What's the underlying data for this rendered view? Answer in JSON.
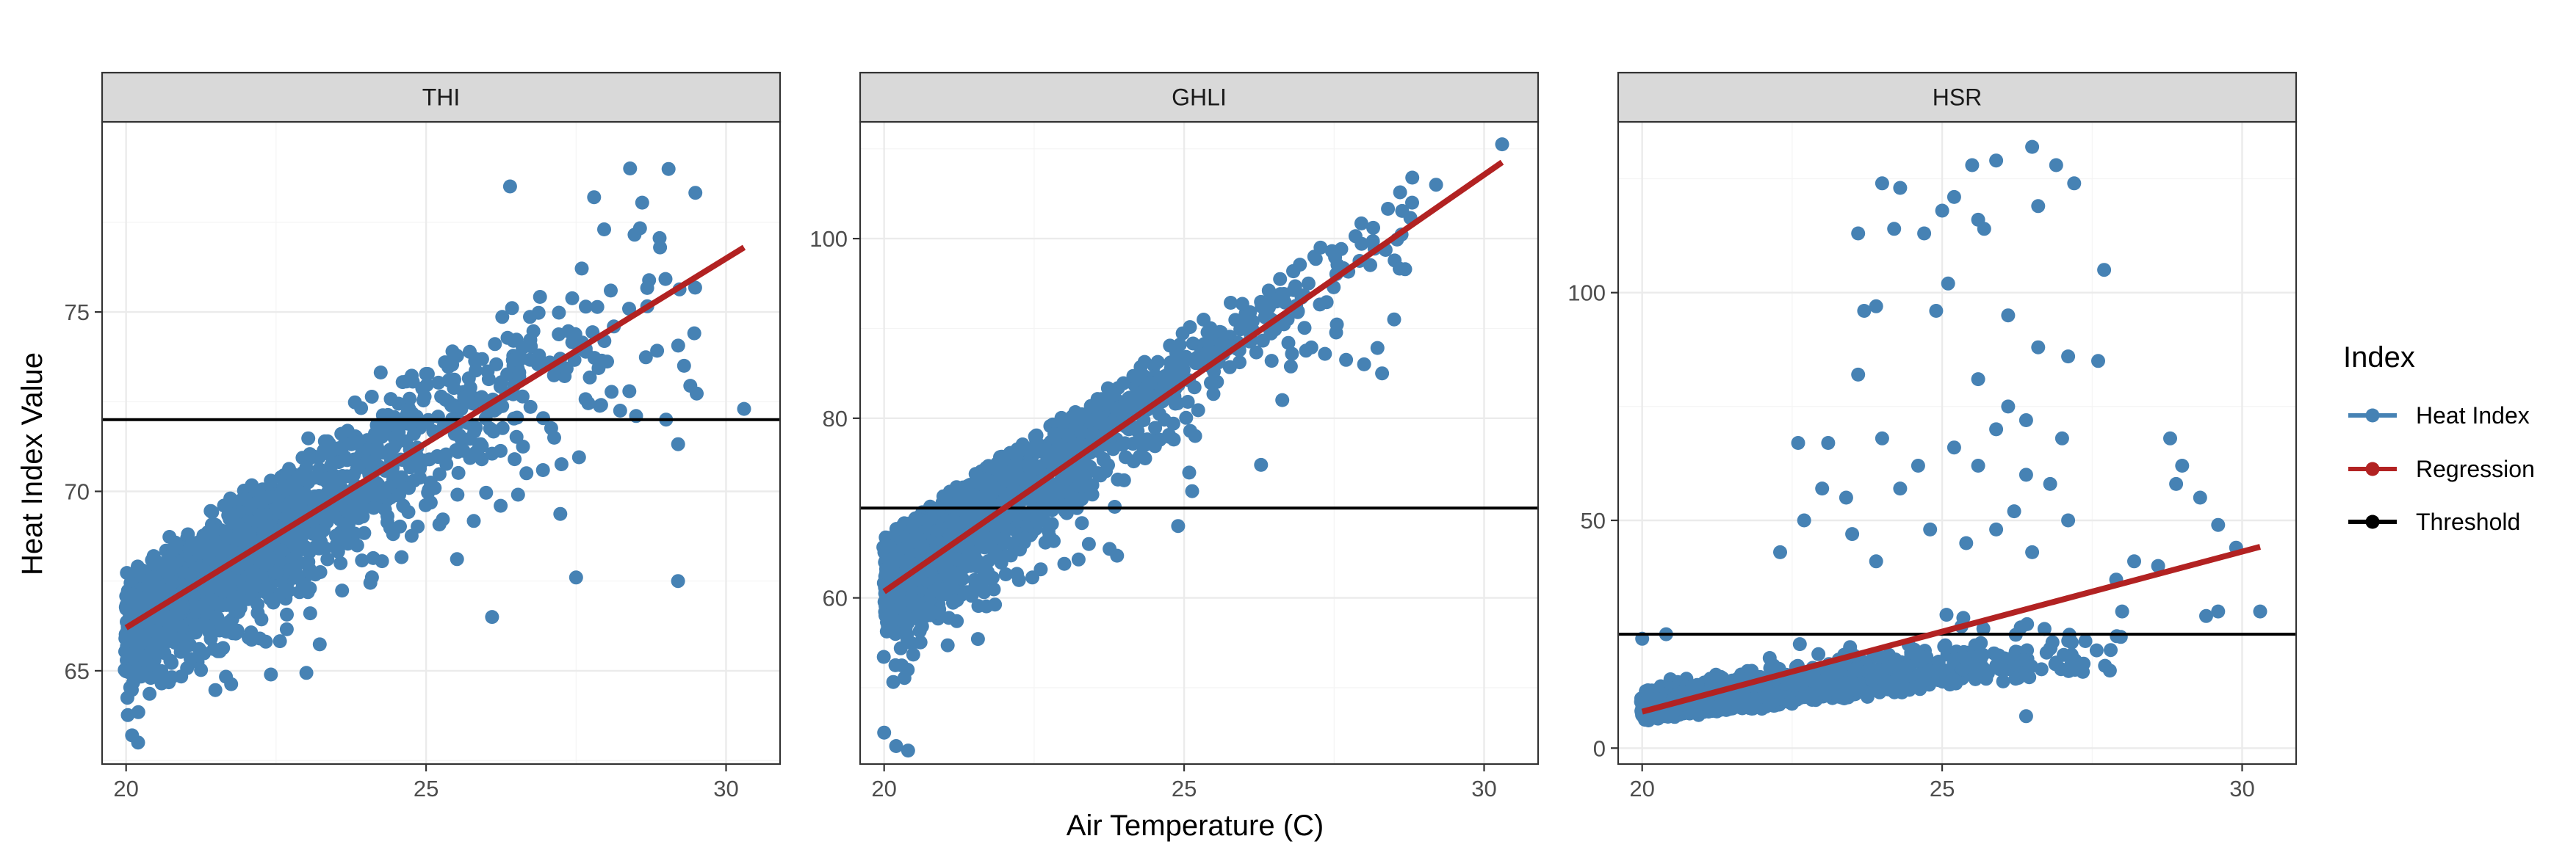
{
  "chart_data": {
    "type": "scatter",
    "xlabel": "Air Temperature (C)",
    "ylabel": "Heat Index Value",
    "legend": {
      "title": "Index",
      "placement": "right",
      "entries": [
        {
          "label": "Heat Index",
          "color": "#4682b4"
        },
        {
          "label": "Regression",
          "color": "#b22222"
        },
        {
          "label": "Threshold",
          "color": "#000000"
        }
      ]
    },
    "grid": true,
    "panels": [
      {
        "name": "THI",
        "xlim": [
          19.6,
          30.9
        ],
        "ylim": [
          62.4,
          80.3
        ],
        "xticks": [
          20,
          25,
          30
        ],
        "yticks": [
          65,
          70,
          75
        ],
        "threshold": 72,
        "regression": {
          "x": [
            20.0,
            30.3
          ],
          "y": [
            66.2,
            76.8
          ]
        },
        "point_cloud": {
          "n": 1900,
          "x_range": [
            20.0,
            29.5
          ],
          "model": {
            "intercept_at_20": 66.2,
            "slope": 1.03,
            "spread_low": 1.2,
            "spread_high": 3.4,
            "skew": -0.3
          },
          "x_density": "exponential",
          "seed": 11
        },
        "outliers": [
          {
            "x": 28.4,
            "y": 79.0
          },
          {
            "x": 26.4,
            "y": 78.5
          },
          {
            "x": 27.8,
            "y": 78.2
          },
          {
            "x": 28.9,
            "y": 76.8
          },
          {
            "x": 29.3,
            "y": 73.5
          },
          {
            "x": 30.3,
            "y": 72.3
          },
          {
            "x": 29.2,
            "y": 67.5
          },
          {
            "x": 27.5,
            "y": 67.6
          },
          {
            "x": 26.1,
            "y": 66.5
          },
          {
            "x": 20.2,
            "y": 63.0
          },
          {
            "x": 20.1,
            "y": 63.2
          },
          {
            "x": 28.5,
            "y": 72.1
          },
          {
            "x": 29.0,
            "y": 72.0
          }
        ]
      },
      {
        "name": "GHLI",
        "xlim": [
          19.6,
          30.9
        ],
        "ylim": [
          41.5,
          113.0
        ],
        "xticks": [
          20,
          25,
          30
        ],
        "yticks": [
          60,
          80,
          100
        ],
        "threshold": 70,
        "regression": {
          "x": [
            20.0,
            30.3
          ],
          "y": [
            60.7,
            108.5
          ]
        },
        "point_cloud": {
          "n": 1900,
          "x_range": [
            20.0,
            29.0
          ],
          "model": {
            "intercept_at_20": 61.5,
            "slope": 4.55,
            "spread_low": 5.5,
            "spread_high": 6.0,
            "skew": -0.45
          },
          "x_density": "exponential",
          "seed": 23
        },
        "outliers": [
          {
            "x": 30.3,
            "y": 110.5
          },
          {
            "x": 29.2,
            "y": 106.0
          },
          {
            "x": 28.8,
            "y": 104.0
          },
          {
            "x": 28.5,
            "y": 91.0
          },
          {
            "x": 28.3,
            "y": 85.0
          },
          {
            "x": 20.2,
            "y": 43.5
          },
          {
            "x": 20.4,
            "y": 43.0
          },
          {
            "x": 20.0,
            "y": 45.0
          },
          {
            "x": 24.9,
            "y": 68.0
          },
          {
            "x": 27.7,
            "y": 86.5
          },
          {
            "x": 28.0,
            "y": 86.0
          }
        ]
      },
      {
        "name": "HSR",
        "xlim": [
          19.6,
          30.9
        ],
        "ylim": [
          -3.5,
          137.5
        ],
        "xticks": [
          20,
          25,
          30
        ],
        "yticks": [
          0,
          50,
          100
        ],
        "threshold": 25,
        "regression": {
          "x": [
            20.0,
            30.3
          ],
          "y": [
            8.0,
            44.2
          ]
        },
        "point_cloud": {
          "n": 1900,
          "x_range": [
            20.0,
            28.0
          ],
          "model": {
            "intercept_at_20": 8.5,
            "slope": 1.8,
            "spread_low": 2.5,
            "spread_high": 5.5,
            "skew": 0.4
          },
          "x_density": "exponential",
          "seed": 37
        },
        "outliers": [
          {
            "x": 26.5,
            "y": 132.0
          },
          {
            "x": 26.9,
            "y": 128.0
          },
          {
            "x": 25.5,
            "y": 128.0
          },
          {
            "x": 25.9,
            "y": 129.0
          },
          {
            "x": 27.2,
            "y": 124.0
          },
          {
            "x": 24.0,
            "y": 124.0
          },
          {
            "x": 24.3,
            "y": 123.0
          },
          {
            "x": 25.2,
            "y": 121.0
          },
          {
            "x": 25.0,
            "y": 118.0
          },
          {
            "x": 25.6,
            "y": 116.0
          },
          {
            "x": 26.6,
            "y": 119.0
          },
          {
            "x": 23.6,
            "y": 113.0
          },
          {
            "x": 24.2,
            "y": 114.0
          },
          {
            "x": 24.7,
            "y": 113.0
          },
          {
            "x": 25.7,
            "y": 114.0
          },
          {
            "x": 25.1,
            "y": 102.0
          },
          {
            "x": 27.7,
            "y": 105.0
          },
          {
            "x": 23.7,
            "y": 96.0
          },
          {
            "x": 23.9,
            "y": 97.0
          },
          {
            "x": 24.9,
            "y": 96.0
          },
          {
            "x": 26.1,
            "y": 95.0
          },
          {
            "x": 27.1,
            "y": 86.0
          },
          {
            "x": 27.6,
            "y": 85.0
          },
          {
            "x": 26.6,
            "y": 88.0
          },
          {
            "x": 23.6,
            "y": 82.0
          },
          {
            "x": 25.6,
            "y": 81.0
          },
          {
            "x": 26.1,
            "y": 75.0
          },
          {
            "x": 25.9,
            "y": 70.0
          },
          {
            "x": 26.4,
            "y": 72.0
          },
          {
            "x": 27.0,
            "y": 68.0
          },
          {
            "x": 22.6,
            "y": 67.0
          },
          {
            "x": 23.1,
            "y": 67.0
          },
          {
            "x": 24.0,
            "y": 68.0
          },
          {
            "x": 25.2,
            "y": 66.0
          },
          {
            "x": 28.8,
            "y": 68.0
          },
          {
            "x": 29.0,
            "y": 62.0
          },
          {
            "x": 28.9,
            "y": 58.0
          },
          {
            "x": 29.3,
            "y": 55.0
          },
          {
            "x": 24.6,
            "y": 62.0
          },
          {
            "x": 25.6,
            "y": 62.0
          },
          {
            "x": 26.4,
            "y": 60.0
          },
          {
            "x": 26.8,
            "y": 58.0
          },
          {
            "x": 23.0,
            "y": 57.0
          },
          {
            "x": 24.3,
            "y": 57.0
          },
          {
            "x": 26.2,
            "y": 52.0
          },
          {
            "x": 23.4,
            "y": 55.0
          },
          {
            "x": 22.7,
            "y": 50.0
          },
          {
            "x": 23.5,
            "y": 47.0
          },
          {
            "x": 24.8,
            "y": 48.0
          },
          {
            "x": 25.9,
            "y": 48.0
          },
          {
            "x": 27.1,
            "y": 50.0
          },
          {
            "x": 29.6,
            "y": 49.0
          },
          {
            "x": 29.9,
            "y": 44.0
          },
          {
            "x": 28.2,
            "y": 41.0
          },
          {
            "x": 28.6,
            "y": 40.0
          },
          {
            "x": 25.4,
            "y": 45.0
          },
          {
            "x": 22.3,
            "y": 43.0
          },
          {
            "x": 23.9,
            "y": 41.0
          },
          {
            "x": 26.5,
            "y": 43.0
          },
          {
            "x": 27.9,
            "y": 37.0
          },
          {
            "x": 29.6,
            "y": 30.0
          },
          {
            "x": 30.3,
            "y": 30.0
          },
          {
            "x": 29.4,
            "y": 29.0
          },
          {
            "x": 28.0,
            "y": 30.0
          },
          {
            "x": 26.4,
            "y": 7.0
          },
          {
            "x": 20.4,
            "y": 25.0
          },
          {
            "x": 20.0,
            "y": 24.0
          }
        ]
      }
    ]
  }
}
